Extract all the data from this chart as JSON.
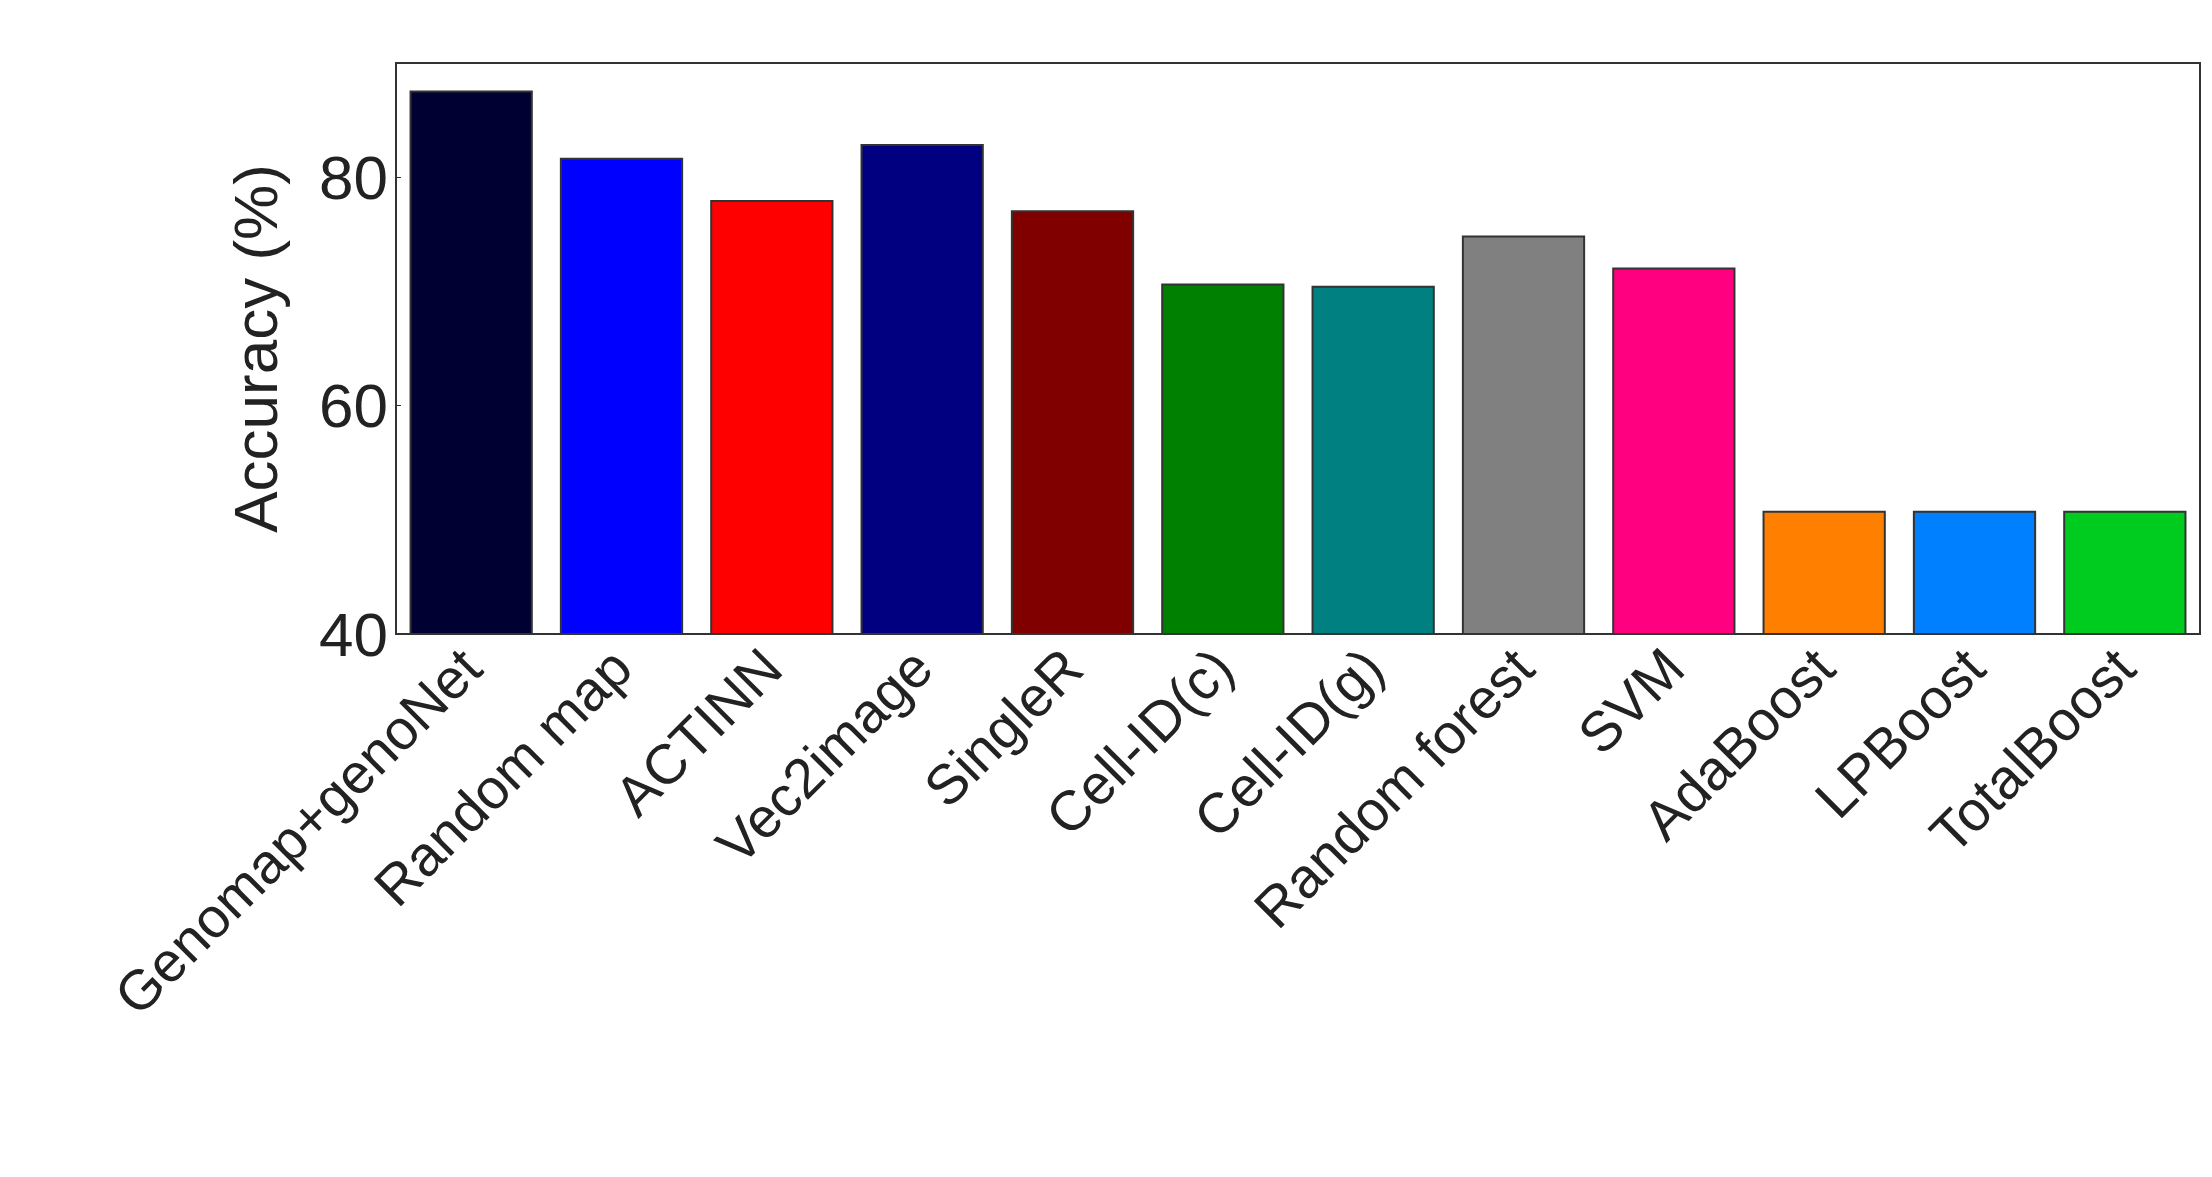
{
  "chart_data": {
    "type": "bar",
    "ylabel": "Accuracy (%)",
    "categories": [
      "Genomap+genoNet",
      "Random map",
      "ACTINN",
      "Vec2image",
      "SingleR",
      "Cell-ID(c)",
      "Cell-ID(g)",
      "Random forest",
      "SVM",
      "AdaBoost",
      "LPBoost",
      "TotalBoost"
    ],
    "values": [
      87.6,
      81.7,
      78.0,
      82.9,
      77.1,
      70.7,
      70.5,
      74.9,
      72.1,
      50.8,
      50.8,
      50.8
    ],
    "colors": [
      "#000033",
      "#0000ff",
      "#ff0000",
      "#000080",
      "#800000",
      "#008000",
      "#008080",
      "#808080",
      "#ff0080",
      "#ff8000",
      "#0080ff",
      "#00cc20"
    ],
    "ylim": [
      40,
      90
    ],
    "yticks": [
      40,
      60,
      80
    ],
    "grid": false
  }
}
